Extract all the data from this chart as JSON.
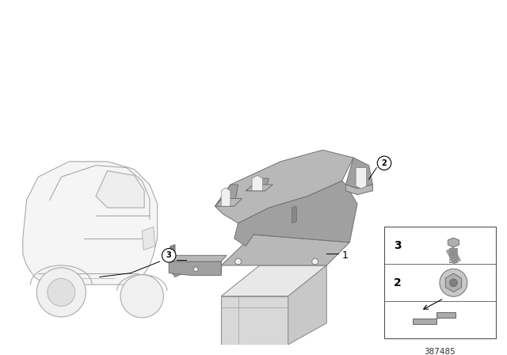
{
  "background_color": "#ffffff",
  "diagram_number": "387485",
  "part_color_light": "#b8b8b8",
  "part_color_mid": "#a0a0a0",
  "part_color_dark": "#888888",
  "part_edge": "#707070",
  "battery_color_front": "#d0d0d0",
  "battery_color_top": "#e0e0e0",
  "battery_color_right": "#c0c0c0",
  "battery_edge": "#909090",
  "car_color": "#cccccc",
  "car_edge": "#aaaaaa",
  "line_color": "#000000",
  "label_bg": "#ffffff",
  "label_edge": "#000000"
}
